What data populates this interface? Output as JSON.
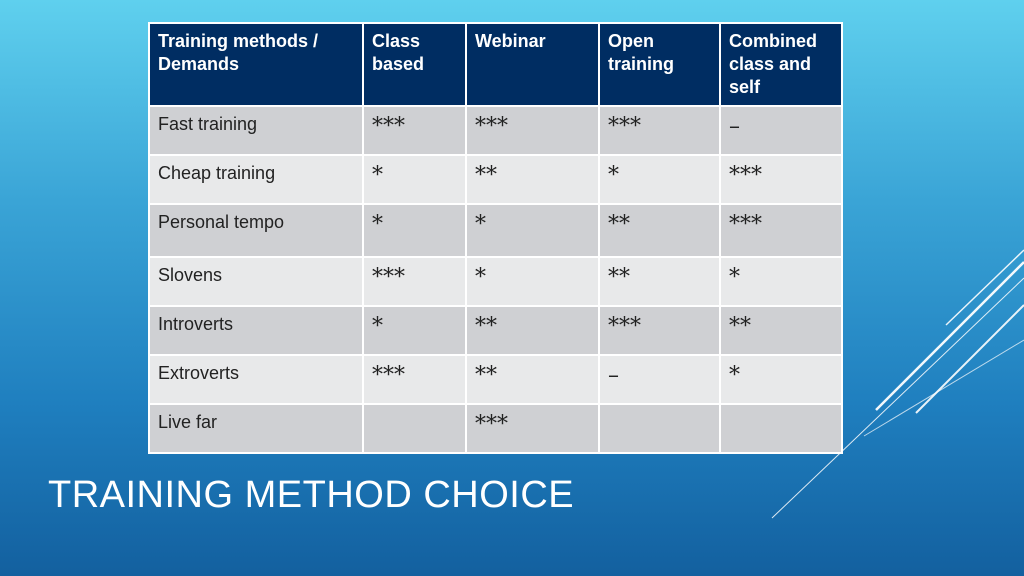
{
  "slide": {
    "title": "TRAINING METHOD CHOICE",
    "colors": {
      "header_bg": "#002d62",
      "row_dark": "#cfd0d3",
      "row_light": "#e8e9ea"
    }
  },
  "table": {
    "headers": [
      "Training methods / Demands",
      "Class based",
      "Webinar",
      "Open training",
      "Combined class and self"
    ],
    "rows": [
      {
        "label": "Fast training",
        "cells": [
          "***",
          "***",
          "***",
          "–"
        ]
      },
      {
        "label": "Cheap training",
        "cells": [
          "*",
          "**",
          "*",
          "***"
        ]
      },
      {
        "label": "Personal tempo",
        "cells": [
          "*",
          "*",
          "**",
          "***"
        ]
      },
      {
        "label": "Slovens",
        "cells": [
          "***",
          "*",
          "**",
          "*"
        ]
      },
      {
        "label": "Introverts",
        "cells": [
          "*",
          "**",
          "***",
          "**"
        ]
      },
      {
        "label": "Extroverts",
        "cells": [
          "***",
          "**",
          "–",
          "*"
        ]
      },
      {
        "label": "Live far",
        "cells": [
          "",
          "***",
          "",
          ""
        ]
      }
    ]
  }
}
